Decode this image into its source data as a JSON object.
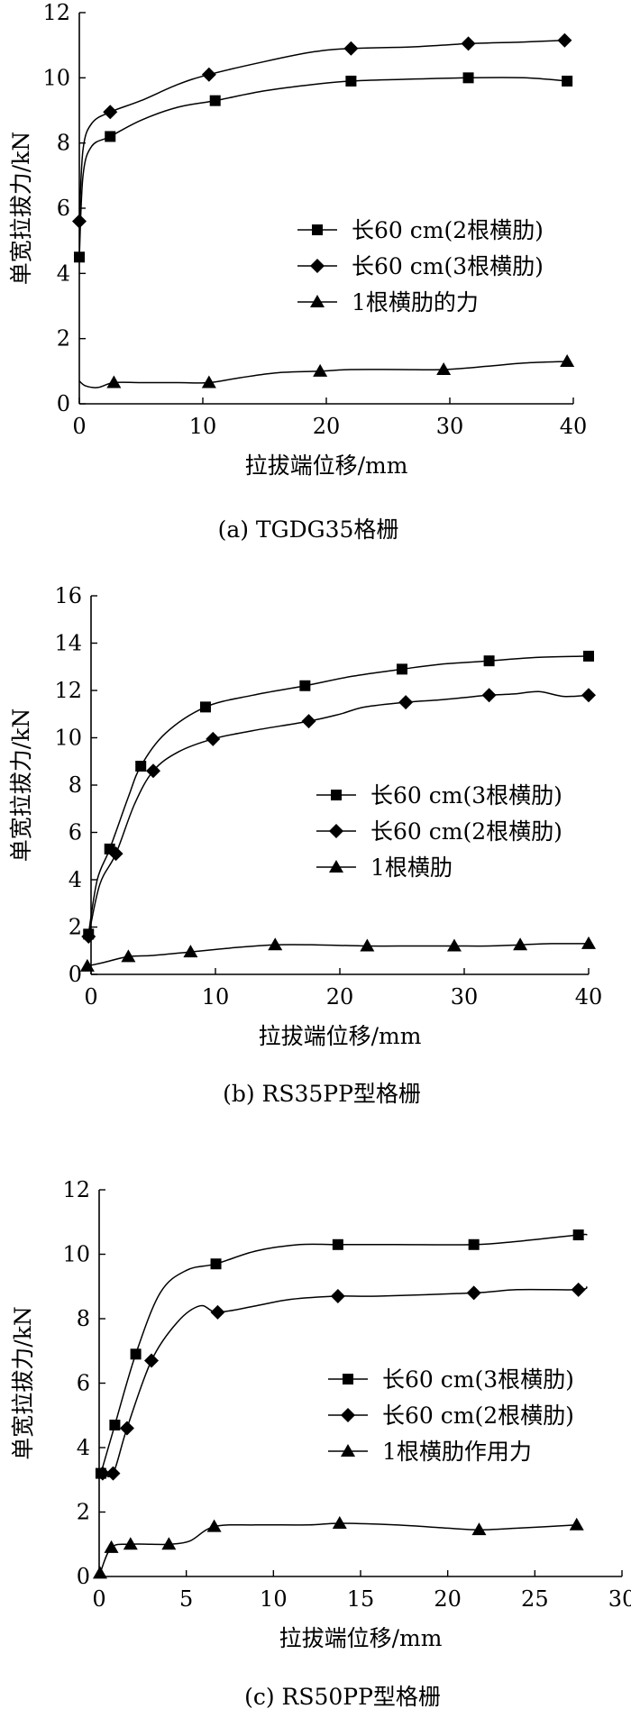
{
  "chart_data": [
    {
      "type": "line",
      "caption": "(a) TGDG35格栅",
      "xlabel": "拉拔端位移/mm",
      "ylabel": "单宽拉拔力/kN",
      "xlim": [
        0,
        40
      ],
      "ylim": [
        0,
        12
      ],
      "xticks": [
        0,
        10,
        20,
        30,
        40
      ],
      "yticks": [
        0,
        2,
        4,
        6,
        8,
        10,
        12
      ],
      "legend_position": "right-middle",
      "series": [
        {
          "name": "长60 cm(2根横肋)",
          "marker": "square",
          "x": [
            0,
            0.3,
            1,
            2.5,
            5,
            8,
            11,
            15,
            19,
            22,
            26,
            31.5,
            36,
            39.5
          ],
          "y": [
            4.5,
            7.0,
            7.9,
            8.2,
            8.7,
            9.1,
            9.3,
            9.6,
            9.8,
            9.9,
            9.95,
            10.0,
            10.0,
            9.9
          ],
          "markers_at": [
            0,
            3,
            6,
            9,
            11,
            13
          ]
        },
        {
          "name": "长60 cm(3根横肋)",
          "marker": "diamond",
          "x": [
            0,
            0.3,
            1,
            2.5,
            5,
            8,
            10.5,
            15,
            19,
            22,
            27,
            31.5,
            36,
            39.3
          ],
          "y": [
            5.6,
            7.8,
            8.6,
            8.95,
            9.3,
            9.8,
            10.1,
            10.5,
            10.8,
            10.9,
            10.95,
            11.05,
            11.1,
            11.15
          ],
          "markers_at": [
            0,
            3,
            6,
            9,
            11,
            13
          ]
        },
        {
          "name": "1根横肋的力",
          "marker": "triangle",
          "x": [
            0,
            0.5,
            1.5,
            2.8,
            5,
            8,
            10.5,
            13,
            16,
            19.5,
            22,
            26,
            29.5,
            33,
            36,
            39.5
          ],
          "y": [
            0.7,
            0.55,
            0.5,
            0.65,
            0.65,
            0.65,
            0.65,
            0.8,
            0.95,
            1.0,
            1.05,
            1.05,
            1.05,
            1.15,
            1.25,
            1.3
          ],
          "markers_at": [
            3,
            6,
            9,
            12,
            15
          ]
        }
      ]
    },
    {
      "type": "line",
      "caption": "(b) RS35PP型格栅",
      "xlabel": "拉拔端位移/mm",
      "ylabel": "单宽拉拔力/kN",
      "xlim": [
        0,
        40
      ],
      "ylim": [
        0,
        16
      ],
      "xticks": [
        0,
        10,
        20,
        30,
        40
      ],
      "yticks": [
        0,
        2,
        4,
        6,
        8,
        10,
        12,
        14,
        16
      ],
      "legend_position": "right-middle",
      "series": [
        {
          "name": "长60 cm(3根横肋)",
          "marker": "square",
          "x": [
            -0.2,
            0.5,
            1.5,
            3,
            4,
            6,
            9.2,
            13,
            17.2,
            21,
            25,
            28,
            32,
            36,
            40
          ],
          "y": [
            1.7,
            4.0,
            5.3,
            7.5,
            8.8,
            10.2,
            11.3,
            11.8,
            12.2,
            12.6,
            12.9,
            13.1,
            13.25,
            13.4,
            13.45
          ],
          "markers_at": [
            0,
            2,
            4,
            6,
            8,
            10,
            12,
            14
          ]
        },
        {
          "name": "长60 cm(2根横肋)",
          "marker": "diamond",
          "x": [
            -0.2,
            0.7,
            2,
            3.5,
            5,
            7,
            9.8,
            13,
            17.5,
            20,
            22,
            25.3,
            28,
            30,
            32,
            34,
            36,
            38,
            40
          ],
          "y": [
            1.6,
            3.8,
            5.1,
            7.2,
            8.6,
            9.4,
            9.95,
            10.3,
            10.7,
            11.0,
            11.3,
            11.5,
            11.6,
            11.7,
            11.8,
            11.85,
            11.95,
            11.75,
            11.8
          ],
          "markers_at": [
            0,
            2,
            4,
            6,
            8,
            11,
            14,
            18
          ]
        },
        {
          "name": "1根横肋",
          "marker": "triangle",
          "x": [
            -0.3,
            1,
            3,
            5,
            8,
            10,
            12,
            14.8,
            18,
            22.2,
            26,
            29.2,
            32,
            34.5,
            37,
            40
          ],
          "y": [
            0.35,
            0.5,
            0.75,
            0.8,
            0.95,
            1.05,
            1.15,
            1.25,
            1.25,
            1.2,
            1.2,
            1.2,
            1.2,
            1.25,
            1.3,
            1.3
          ],
          "markers_at": [
            0,
            2,
            4,
            7,
            9,
            11,
            13,
            15
          ]
        }
      ]
    },
    {
      "type": "line",
      "caption": "(c) RS50PP型格栅",
      "xlabel": "拉拔端位移/mm",
      "ylabel": "单宽拉拔力/kN",
      "xlim": [
        0,
        30
      ],
      "ylim": [
        0,
        12
      ],
      "xticks": [
        0,
        5,
        10,
        15,
        20,
        25,
        30
      ],
      "yticks": [
        0,
        2,
        4,
        6,
        8,
        10,
        12
      ],
      "legend_position": "right-middle",
      "series": [
        {
          "name": "长60 cm(3根横肋)",
          "marker": "square",
          "x": [
            0.1,
            0.9,
            2.1,
            3.5,
            5,
            6.7,
            9,
            11.5,
            13.7,
            17,
            21.5,
            24,
            27.5,
            28
          ],
          "y": [
            3.2,
            4.7,
            6.9,
            8.8,
            9.5,
            9.7,
            10.1,
            10.3,
            10.3,
            10.3,
            10.3,
            10.4,
            10.6,
            10.6
          ],
          "markers_at": [
            0,
            1,
            2,
            5,
            8,
            10,
            12
          ]
        },
        {
          "name": "长60 cm(2根横肋)",
          "marker": "diamond",
          "x": [
            0.2,
            0.8,
            1.6,
            3,
            4.5,
            5.8,
            6.8,
            9,
            11,
            13.7,
            16,
            21.5,
            24,
            27.5,
            28
          ],
          "y": [
            3.2,
            3.2,
            4.6,
            6.7,
            7.9,
            8.4,
            8.2,
            8.4,
            8.6,
            8.7,
            8.7,
            8.8,
            8.9,
            8.9,
            9.0
          ],
          "markers_at": [
            0,
            1,
            2,
            3,
            6,
            9,
            11,
            13
          ]
        },
        {
          "name": "1根横肋作用力",
          "marker": "triangle",
          "x": [
            0.05,
            0.7,
            1.8,
            3,
            4,
            5.2,
            6.6,
            9,
            12,
            13.8,
            17,
            20,
            21.8,
            24,
            27.4
          ],
          "y": [
            0.1,
            0.9,
            1.0,
            1.0,
            1.0,
            1.1,
            1.55,
            1.6,
            1.6,
            1.65,
            1.6,
            1.5,
            1.45,
            1.5,
            1.6
          ],
          "markers_at": [
            0,
            1,
            2,
            4,
            6,
            9,
            12,
            14
          ]
        }
      ]
    }
  ]
}
